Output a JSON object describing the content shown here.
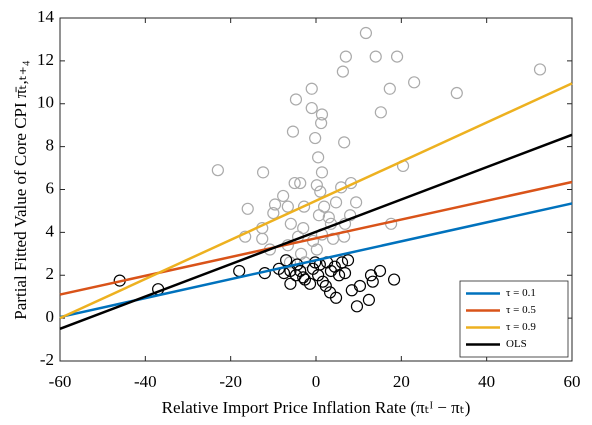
{
  "chart_data": {
    "type": "scatter",
    "xlabel": "Relative Import Price Inflation Rate (πₜᴵ − πₜ)",
    "ylabel": "Partial Fitted Value of Core CPI π̄ₜ,ₜ₊₄",
    "xlim": [
      -60,
      60
    ],
    "ylim": [
      -2,
      14
    ],
    "xticks": [
      -60,
      -40,
      -20,
      0,
      20,
      40,
      60
    ],
    "yticks": [
      -2,
      0,
      2,
      4,
      6,
      8,
      10,
      12,
      14
    ],
    "legend": "bottom-right",
    "series": [
      {
        "mode": "markers",
        "color": "#aaaaaa",
        "x": [
          11.7,
          7,
          14,
          19,
          6.3,
          52.5,
          23,
          17.3,
          -1,
          33,
          -4.7,
          1.4,
          1.2,
          -1,
          15.2,
          -5.4,
          6.6,
          -0.2,
          0.5,
          20.4,
          1.4,
          -23,
          -12.4,
          -3.7,
          -5,
          8.2,
          0.2,
          1,
          5.9,
          -7.7,
          -9.6,
          -6.6,
          -2.8,
          1.9,
          4.7,
          9.4,
          -16,
          -10,
          0.7,
          3,
          -5.9,
          6.8,
          -3,
          3.5,
          17.6,
          8,
          -12.6,
          -16.6,
          -12.6,
          -4.2,
          1.4,
          -0.7,
          -6.6,
          -10.8,
          -3.5,
          0.2,
          4,
          -6.1,
          -2.6,
          6.6
        ],
        "values": [
          13.3,
          12.2,
          12.2,
          12.2,
          11.5,
          11.6,
          11.0,
          10.7,
          10.7,
          10.5,
          10.2,
          9.5,
          9.1,
          9.8,
          9.6,
          8.7,
          8.2,
          8.4,
          7.5,
          7.1,
          6.8,
          6.9,
          6.8,
          6.3,
          6.3,
          6.3,
          6.2,
          5.9,
          6.1,
          5.7,
          5.3,
          5.2,
          5.2,
          5.2,
          5.4,
          5.4,
          5.1,
          4.9,
          4.8,
          4.7,
          4.4,
          4.4,
          4.2,
          4.4,
          4.4,
          4.8,
          4.2,
          3.8,
          3.7,
          3.8,
          3.9,
          3.6,
          3.4,
          3.2,
          3.0,
          3.2,
          3.7,
          2.6,
          2.6,
          3.8
        ]
      },
      {
        "mode": "markers",
        "color": "#000000",
        "x": [
          -46,
          -37,
          -18,
          -12,
          -8.7,
          -7.5,
          -6,
          -4.7,
          -3.7,
          -2.6,
          -1.4,
          -0.7,
          0.5,
          1.6,
          2.6,
          3.5,
          4.4,
          5.4,
          6.1,
          6.8,
          7.5,
          4.7,
          8.4,
          9.6,
          12.4,
          10.3,
          12.9,
          15,
          18.3,
          13.3,
          -7,
          -4.4,
          -3,
          -0.2,
          0.9,
          2.3,
          3.3,
          -6
        ],
        "values": [
          1.75,
          1.35,
          2.2,
          2.1,
          2.3,
          2.1,
          2.2,
          2.0,
          2.2,
          1.8,
          1.6,
          2.3,
          2.0,
          1.7,
          2.6,
          2.2,
          2.4,
          2.0,
          2.6,
          2.1,
          2.7,
          0.95,
          1.3,
          0.55,
          0.85,
          1.5,
          2.0,
          2.2,
          1.8,
          1.7,
          2.7,
          2.5,
          1.9,
          2.6,
          2.5,
          1.5,
          1.2,
          1.6
        ]
      },
      {
        "mode": "line",
        "name": "τ = 0.1",
        "color": "#0072bd",
        "x": [
          -60,
          60
        ],
        "values": [
          0.05,
          5.35
        ]
      },
      {
        "mode": "line",
        "name": "τ = 0.5",
        "color": "#d95319",
        "x": [
          -60,
          60
        ],
        "values": [
          1.1,
          6.35
        ]
      },
      {
        "mode": "line",
        "name": "τ = 0.9",
        "color": "#edb120",
        "x": [
          -60,
          60
        ],
        "values": [
          0.0,
          10.95
        ]
      },
      {
        "mode": "line",
        "name": "OLS",
        "color": "#000000",
        "x": [
          -60,
          60
        ],
        "values": [
          -0.5,
          8.55
        ]
      }
    ]
  }
}
